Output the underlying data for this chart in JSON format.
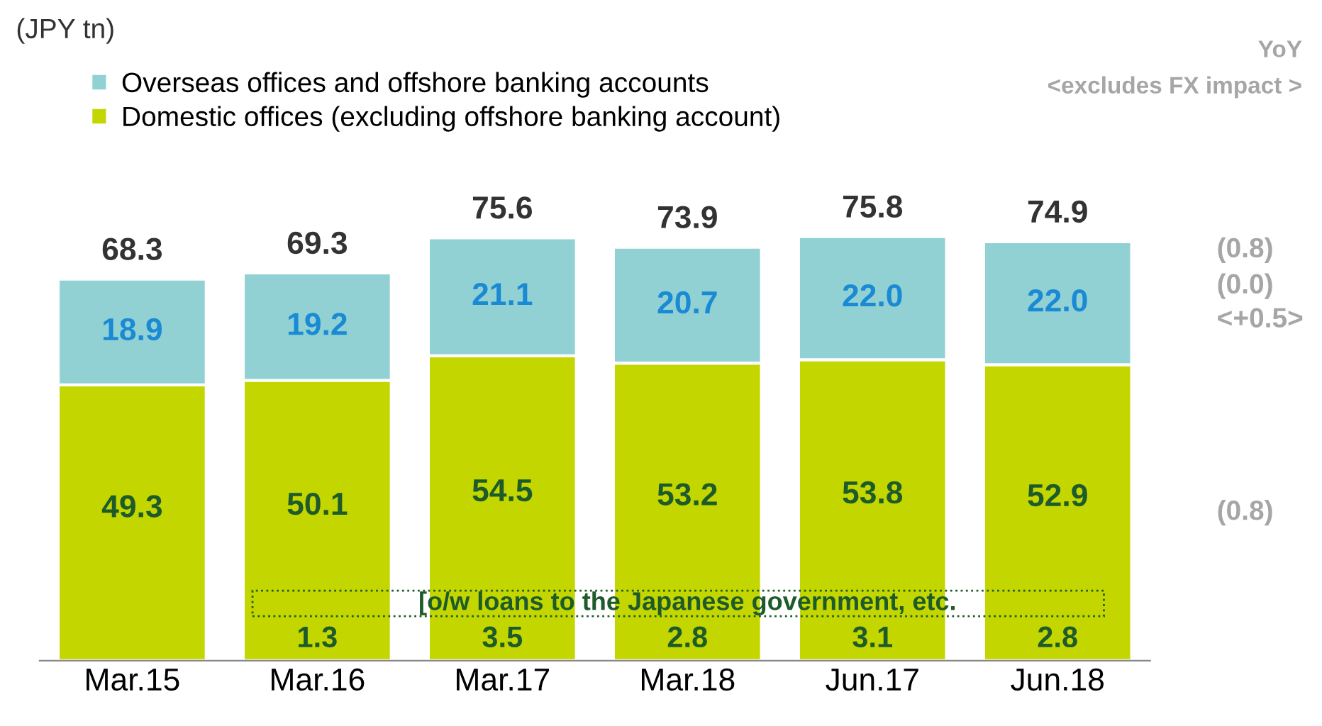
{
  "chart_data": {
    "type": "bar",
    "stacked": true,
    "categories": [
      "Mar.15",
      "Mar.16",
      "Mar.17",
      "Mar.18",
      "Jun.17",
      "Jun.18"
    ],
    "series": [
      {
        "name": "Domestic offices (excluding offshore banking account)",
        "color": "#c3d600",
        "values": [
          49.3,
          50.1,
          54.5,
          53.2,
          53.8,
          52.9
        ],
        "value_labels": [
          "49.3",
          "50.1",
          "54.5",
          "53.2",
          "53.8",
          "52.9"
        ]
      },
      {
        "name": "Overseas offices and offshore banking accounts",
        "color": "#92d1d3",
        "values": [
          18.9,
          19.2,
          21.1,
          20.7,
          22.0,
          22.0
        ],
        "value_labels": [
          "18.9",
          "19.2",
          "21.1",
          "20.7",
          "22.0",
          "22.0"
        ]
      }
    ],
    "totals": [
      "68.3",
      "69.3",
      "75.6",
      "73.9",
      "75.8",
      "74.9"
    ],
    "legend": "top left",
    "annotations": [
      "(JPY tn)",
      "YoY",
      "<excludes FX impact >",
      "[o/w loans to the Japanese government, etc.",
      "1.3",
      "3.5",
      "2.8",
      "3.1",
      "2.8",
      "(0.8)",
      "(0.0)",
      "<+0.5>",
      "(0.8)"
    ]
  }
}
